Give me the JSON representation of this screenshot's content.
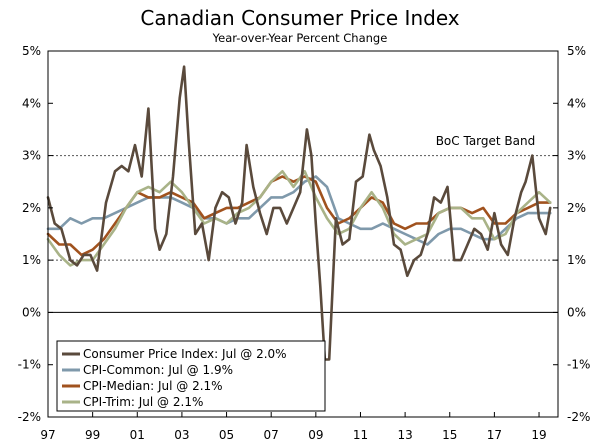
{
  "chart_data": {
    "type": "line",
    "title": "Canadian Consumer Price Index",
    "subtitle": "Year-over-Year Percent Change",
    "xlabel": "",
    "ylabel": "",
    "xlim": [
      1997.0,
      2019.85
    ],
    "ylim": [
      -2,
      5
    ],
    "x_ticks": [
      1997,
      1999,
      2001,
      2003,
      2005,
      2007,
      2009,
      2011,
      2013,
      2015,
      2017,
      2019
    ],
    "x_tick_labels": [
      "97",
      "99",
      "01",
      "03",
      "05",
      "07",
      "09",
      "11",
      "13",
      "15",
      "17",
      "19"
    ],
    "y_ticks": [
      -2,
      -1,
      0,
      1,
      2,
      3,
      4,
      5
    ],
    "y_tick_labels": [
      "-2%",
      "-1%",
      "0%",
      "1%",
      "2%",
      "3%",
      "4%",
      "5%"
    ],
    "reference_lines": [
      {
        "y": 3,
        "style": "dashed"
      },
      {
        "y": 1,
        "style": "dashed"
      },
      {
        "y": 0,
        "style": "solid"
      }
    ],
    "annotations": [
      {
        "text": "BoC Target Band",
        "x": 2016.6,
        "y": 3.2
      }
    ],
    "legend_position": "bottom-left",
    "series": [
      {
        "name": "Consumer Price Index",
        "legend": "Consumer Price Index: Jul @ 2.0%",
        "color": "#5a4a3c",
        "x": [
          1997.0,
          1997.3,
          1997.6,
          1998.0,
          1998.3,
          1998.6,
          1998.9,
          1999.2,
          1999.6,
          2000.0,
          2000.3,
          2000.6,
          2000.9,
          2001.2,
          2001.5,
          2001.8,
          2002.0,
          2002.3,
          2002.6,
          2002.9,
          2003.1,
          2003.3,
          2003.6,
          2003.9,
          2004.2,
          2004.5,
          2004.8,
          2005.1,
          2005.4,
          2005.7,
          2005.9,
          2006.2,
          2006.5,
          2006.8,
          2007.1,
          2007.4,
          2007.7,
          2008.0,
          2008.3,
          2008.6,
          2008.8,
          2009.0,
          2009.2,
          2009.4,
          2009.6,
          2009.9,
          2010.2,
          2010.5,
          2010.8,
          2011.1,
          2011.4,
          2011.6,
          2011.9,
          2012.2,
          2012.5,
          2012.8,
          2013.1,
          2013.4,
          2013.7,
          2014.0,
          2014.3,
          2014.6,
          2014.9,
          2015.2,
          2015.5,
          2015.8,
          2016.1,
          2016.4,
          2016.7,
          2017.0,
          2017.3,
          2017.6,
          2017.9,
          2018.2,
          2018.4,
          2018.7,
          2019.0,
          2019.3,
          2019.5
        ],
        "values": [
          2.2,
          1.7,
          1.6,
          1.0,
          0.9,
          1.1,
          1.1,
          0.8,
          2.1,
          2.7,
          2.8,
          2.7,
          3.2,
          2.6,
          3.9,
          1.6,
          1.2,
          1.5,
          2.6,
          4.1,
          4.7,
          3.3,
          1.5,
          1.7,
          1.0,
          2.0,
          2.3,
          2.2,
          1.7,
          2.1,
          3.2,
          2.4,
          1.9,
          1.5,
          2.0,
          2.0,
          1.7,
          2.0,
          2.3,
          3.5,
          3.0,
          1.7,
          0.5,
          -0.9,
          -0.9,
          1.8,
          1.3,
          1.4,
          2.5,
          2.6,
          3.4,
          3.1,
          2.8,
          2.2,
          1.3,
          1.2,
          0.7,
          1.0,
          1.1,
          1.5,
          2.2,
          2.1,
          2.4,
          1.0,
          1.0,
          1.3,
          1.6,
          1.5,
          1.2,
          1.9,
          1.3,
          1.1,
          1.8,
          2.3,
          2.5,
          3.0,
          1.8,
          1.5,
          2.0
        ]
      },
      {
        "name": "CPI-Common",
        "legend": "CPI-Common: Jul @ 1.9%",
        "color": "#7f99ab",
        "x": [
          1997.0,
          1997.5,
          1998.0,
          1998.5,
          1999.0,
          1999.5,
          2000.0,
          2000.5,
          2001.0,
          2001.5,
          2002.0,
          2002.5,
          2003.0,
          2003.5,
          2004.0,
          2004.5,
          2005.0,
          2005.5,
          2006.0,
          2006.5,
          2007.0,
          2007.5,
          2008.0,
          2008.5,
          2009.0,
          2009.5,
          2010.0,
          2010.5,
          2011.0,
          2011.5,
          2012.0,
          2012.5,
          2013.0,
          2013.5,
          2014.0,
          2014.5,
          2015.0,
          2015.5,
          2016.0,
          2016.5,
          2017.0,
          2017.5,
          2018.0,
          2018.5,
          2019.0,
          2019.5
        ],
        "values": [
          1.6,
          1.6,
          1.8,
          1.7,
          1.8,
          1.8,
          1.9,
          2.0,
          2.1,
          2.2,
          2.2,
          2.2,
          2.1,
          2.0,
          1.8,
          1.8,
          1.7,
          1.8,
          1.8,
          2.0,
          2.2,
          2.2,
          2.3,
          2.5,
          2.6,
          2.4,
          1.8,
          1.7,
          1.6,
          1.6,
          1.7,
          1.6,
          1.5,
          1.4,
          1.3,
          1.5,
          1.6,
          1.6,
          1.5,
          1.4,
          1.4,
          1.6,
          1.8,
          1.9,
          1.9,
          1.9
        ]
      },
      {
        "name": "CPI-Median",
        "legend": "CPI-Median: Jul @ 2.1%",
        "color": "#a0521e",
        "x": [
          1997.0,
          1997.5,
          1998.0,
          1998.5,
          1999.0,
          1999.5,
          2000.0,
          2000.5,
          2001.0,
          2001.5,
          2002.0,
          2002.5,
          2003.0,
          2003.5,
          2004.0,
          2004.5,
          2005.0,
          2005.5,
          2006.0,
          2006.5,
          2007.0,
          2007.5,
          2008.0,
          2008.5,
          2009.0,
          2009.5,
          2010.0,
          2010.5,
          2011.0,
          2011.5,
          2012.0,
          2012.5,
          2013.0,
          2013.5,
          2014.0,
          2014.5,
          2015.0,
          2015.5,
          2016.0,
          2016.5,
          2017.0,
          2017.5,
          2018.0,
          2018.5,
          2019.0,
          2019.5
        ],
        "values": [
          1.5,
          1.3,
          1.3,
          1.1,
          1.2,
          1.4,
          1.7,
          2.0,
          2.3,
          2.2,
          2.2,
          2.3,
          2.2,
          2.1,
          1.8,
          1.9,
          2.0,
          2.0,
          2.1,
          2.2,
          2.5,
          2.6,
          2.5,
          2.6,
          2.5,
          2.0,
          1.7,
          1.8,
          2.0,
          2.2,
          2.1,
          1.7,
          1.6,
          1.7,
          1.7,
          1.9,
          2.0,
          2.0,
          1.9,
          2.0,
          1.7,
          1.7,
          1.9,
          2.0,
          2.1,
          2.1
        ]
      },
      {
        "name": "CPI-Trim",
        "legend": "CPI-Trim: Jul @ 2.1%",
        "color": "#a9b388",
        "x": [
          1997.0,
          1997.5,
          1998.0,
          1998.5,
          1999.0,
          1999.5,
          2000.0,
          2000.5,
          2001.0,
          2001.5,
          2002.0,
          2002.5,
          2003.0,
          2003.5,
          2004.0,
          2004.5,
          2005.0,
          2005.5,
          2006.0,
          2006.5,
          2007.0,
          2007.5,
          2008.0,
          2008.5,
          2009.0,
          2009.5,
          2010.0,
          2010.5,
          2011.0,
          2011.5,
          2012.0,
          2012.5,
          2013.0,
          2013.5,
          2014.0,
          2014.5,
          2015.0,
          2015.5,
          2016.0,
          2016.5,
          2017.0,
          2017.5,
          2018.0,
          2018.5,
          2019.0,
          2019.5
        ],
        "values": [
          1.4,
          1.1,
          0.9,
          1.0,
          1.0,
          1.3,
          1.6,
          2.0,
          2.3,
          2.4,
          2.3,
          2.5,
          2.3,
          2.0,
          1.7,
          1.8,
          1.7,
          1.9,
          2.0,
          2.2,
          2.5,
          2.7,
          2.4,
          2.7,
          2.2,
          1.8,
          1.5,
          1.6,
          2.0,
          2.3,
          2.0,
          1.5,
          1.3,
          1.4,
          1.5,
          1.9,
          2.0,
          2.0,
          1.8,
          1.8,
          1.4,
          1.5,
          1.9,
          2.1,
          2.3,
          2.1
        ]
      }
    ]
  }
}
